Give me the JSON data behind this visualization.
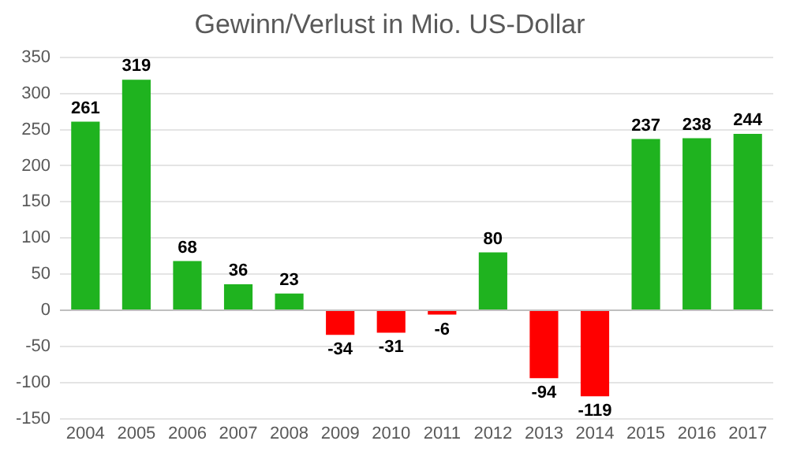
{
  "chart_data": {
    "type": "bar",
    "title": "Gewinn/Verlust in Mio. US-Dollar",
    "categories": [
      "2004",
      "2005",
      "2006",
      "2007",
      "2008",
      "2009",
      "2010",
      "2011",
      "2012",
      "2013",
      "2014",
      "2015",
      "2016",
      "2017"
    ],
    "values": [
      261,
      319,
      68,
      36,
      23,
      -34,
      -31,
      -6,
      80,
      -94,
      -119,
      237,
      238,
      244
    ],
    "colors": [
      "#1fb31f",
      "#1fb31f",
      "#1fb31f",
      "#1fb31f",
      "#1fb31f",
      "#ff0000",
      "#ff0000",
      "#ff0000",
      "#1fb31f",
      "#ff0000",
      "#ff0000",
      "#1fb31f",
      "#1fb31f",
      "#1fb31f"
    ],
    "ylim": [
      -150,
      350
    ],
    "yticks": [
      -150,
      -100,
      -50,
      0,
      50,
      100,
      150,
      200,
      250,
      300,
      350
    ],
    "grid": "y",
    "data_labels": true,
    "legend": false
  }
}
